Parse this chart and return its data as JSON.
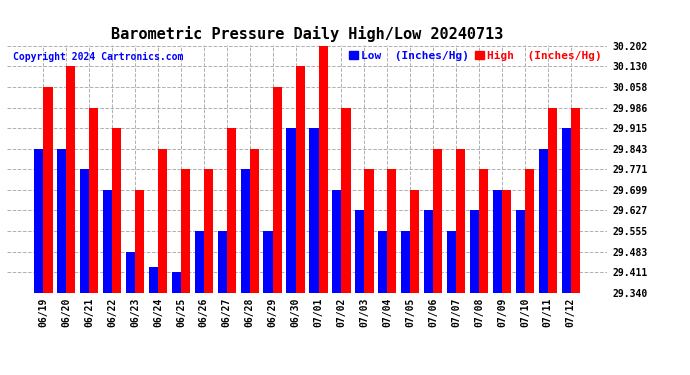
{
  "title": "Barometric Pressure Daily High/Low 20240713",
  "copyright": "Copyright 2024 Cartronics.com",
  "legend_low": "Low  (Inches/Hg)",
  "legend_high": "High  (Inches/Hg)",
  "dates": [
    "06/19",
    "06/20",
    "06/21",
    "06/22",
    "06/23",
    "06/24",
    "06/25",
    "06/26",
    "06/27",
    "06/28",
    "06/29",
    "06/30",
    "07/01",
    "07/02",
    "07/03",
    "07/04",
    "07/05",
    "07/06",
    "07/07",
    "07/08",
    "07/09",
    "07/10",
    "07/11",
    "07/12"
  ],
  "low": [
    29.843,
    29.843,
    29.771,
    29.699,
    29.483,
    29.43,
    29.411,
    29.555,
    29.555,
    29.771,
    29.555,
    29.915,
    29.915,
    29.699,
    29.627,
    29.555,
    29.555,
    29.627,
    29.555,
    29.627,
    29.699,
    29.627,
    29.843,
    29.915
  ],
  "high": [
    30.058,
    30.13,
    29.986,
    29.915,
    29.699,
    29.843,
    29.771,
    29.771,
    29.915,
    29.843,
    30.058,
    30.13,
    30.202,
    29.986,
    29.771,
    29.771,
    29.699,
    29.843,
    29.843,
    29.771,
    29.699,
    29.771,
    29.986,
    29.986
  ],
  "ylim_min": 29.34,
  "ylim_max": 30.202,
  "yticks": [
    29.34,
    29.411,
    29.483,
    29.555,
    29.627,
    29.699,
    29.771,
    29.843,
    29.915,
    29.986,
    30.058,
    30.13,
    30.202
  ],
  "color_low": "#0000ff",
  "color_high": "#ff0000",
  "bg_color": "#ffffff",
  "grid_color": "#b0b0b0",
  "title_fontsize": 11,
  "copyright_fontsize": 7,
  "tick_fontsize": 7,
  "legend_fontsize": 8,
  "bar_width": 0.4
}
